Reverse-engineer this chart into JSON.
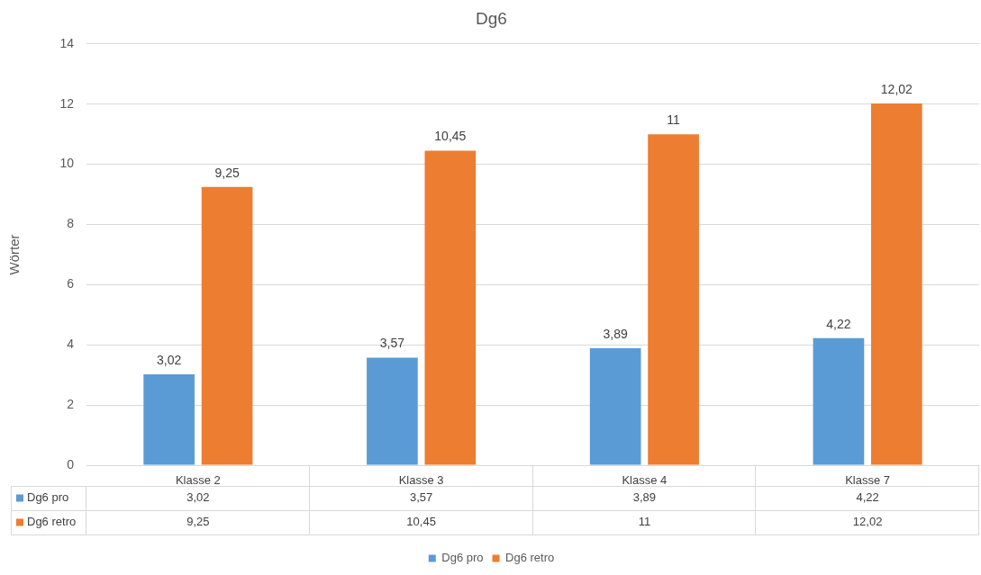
{
  "chart_data": {
    "type": "bar",
    "title": "Dg6",
    "ylabel": "Wörter",
    "categories": [
      "Klasse 2",
      "Klasse 3",
      "Klasse 4",
      "Klasse 7"
    ],
    "series": [
      {
        "name": "Dg6 pro",
        "color": "#5b9bd5",
        "values": [
          3.02,
          3.57,
          3.89,
          4.22
        ],
        "value_labels": [
          "3,02",
          "3,57",
          "3,89",
          "4,22"
        ]
      },
      {
        "name": "Dg6 retro",
        "color": "#ed7d31",
        "values": [
          9.25,
          10.45,
          11,
          12.02
        ],
        "value_labels": [
          "9,25",
          "10,45",
          "11",
          "12,02"
        ]
      }
    ],
    "ylim": [
      0,
      14
    ],
    "yticks": [
      0,
      2,
      4,
      6,
      8,
      10,
      12,
      14
    ],
    "grid": "y",
    "legend": "bottom"
  }
}
